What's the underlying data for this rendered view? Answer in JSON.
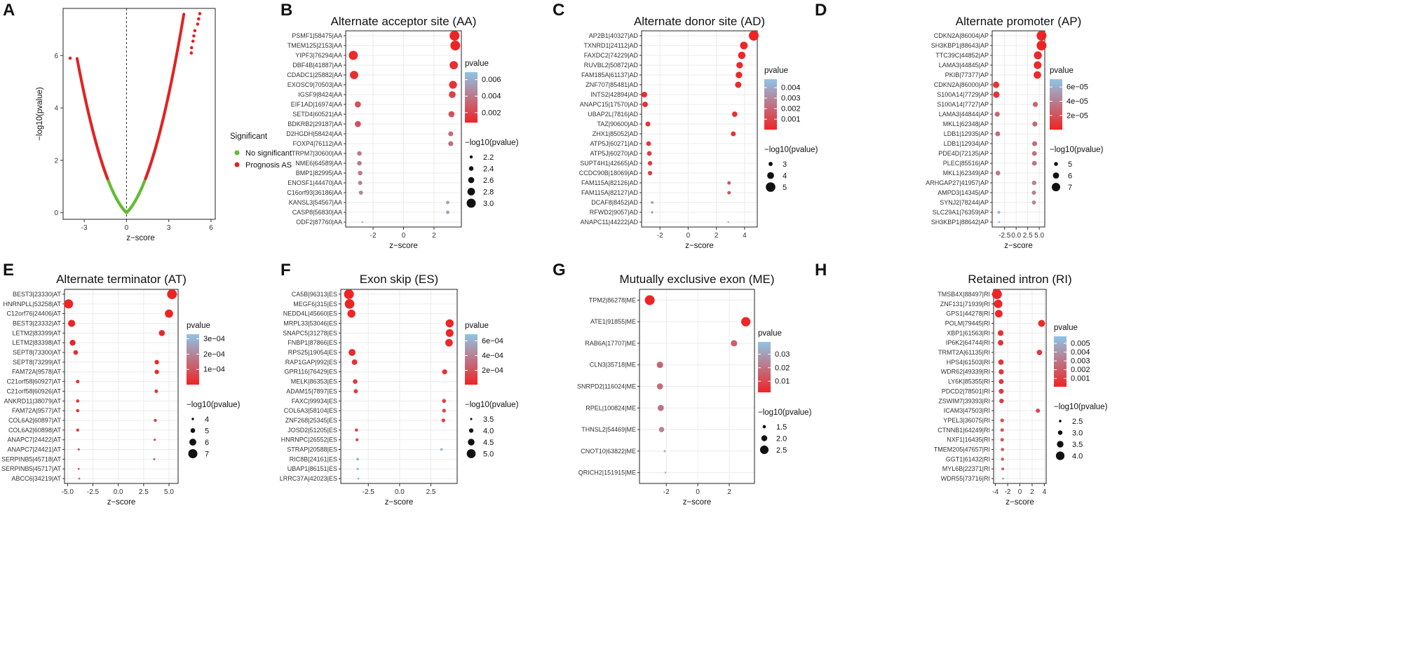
{
  "colors": {
    "high": "#ee2424",
    "low": "#8ec4e6",
    "green": "#66bb33",
    "red": "#e02424"
  },
  "chart_data": [
    {
      "panel": "A",
      "type": "scatter",
      "title": "",
      "xlabel": "z−score",
      "ylabel": "−log10(pvalue)",
      "xlim": [
        -4.5,
        6.3
      ],
      "ylim": [
        -0.25,
        7.8
      ],
      "xticks": [
        -3,
        0,
        3,
        6
      ],
      "xtick_labels": [
        "-3",
        "0",
        "3",
        "6"
      ],
      "yticks": [
        0,
        2,
        4,
        6
      ],
      "vline": 0,
      "legend_title": "Significant",
      "legend": [
        "No significant",
        "Prognosis AS"
      ]
    },
    {
      "panel": "B",
      "type": "scatter",
      "title": "Alternate acceptor site (AA)",
      "xlabel": "z−score",
      "xlim": [
        -3.8,
        3.8
      ],
      "xticks": [
        -2,
        0,
        2
      ],
      "xtick_labels": [
        "-2",
        "0",
        "2"
      ],
      "labels": [
        "PSMF1|58475|AA",
        "TMEM125|2153|AA",
        "YIPF3|76294|AA",
        "DBF4B|41887|AA",
        "CDADC1|25882|AA",
        "EXOSC9|70503|AA",
        "IGSF9|8424|AA",
        "EIF1AD|16974|AA",
        "SETD4|60521|AA",
        "BDKRB2|29187|AA",
        "D2HGDH|58424|AA",
        "FOXP4|76112|AA",
        "TRPM7|30600|AA",
        "NME6|64589|AA",
        "BMP1|82995|AA",
        "ENOSF1|44470|AA",
        "C16orf93|36186|AA",
        "KANSL3|54567|AA",
        "CASP8|56830|AA",
        "ODF2|87760|AA"
      ],
      "x": [
        3.35,
        3.4,
        -3.3,
        3.3,
        -3.25,
        3.25,
        3.2,
        -3.0,
        3.15,
        -3.0,
        3.1,
        3.1,
        -2.9,
        -2.9,
        -2.85,
        -2.85,
        -2.8,
        2.9,
        2.9,
        -2.7
      ],
      "neglog10p": [
        3.1,
        3.1,
        3.0,
        2.9,
        2.9,
        2.85,
        2.7,
        2.6,
        2.6,
        2.6,
        2.45,
        2.45,
        2.4,
        2.4,
        2.4,
        2.35,
        2.35,
        2.25,
        2.25,
        2.05
      ],
      "pvalue": [
        0.0008,
        0.0008,
        0.001,
        0.0012,
        0.0012,
        0.0014,
        0.002,
        0.0025,
        0.0025,
        0.0025,
        0.0035,
        0.0035,
        0.004,
        0.004,
        0.004,
        0.0045,
        0.0045,
        0.0056,
        0.0056,
        0.0069
      ],
      "color_legend": {
        "title": "pvalue",
        "min": 0.0008,
        "max": 0.0069,
        "ticks": [
          0.002,
          0.004,
          0.006
        ],
        "tick_labels": [
          "0.002",
          "0.004",
          "0.006"
        ]
      },
      "size_legend": {
        "title": "−log10(pvalue)",
        "values": [
          2.2,
          2.4,
          2.6,
          2.8,
          3.0
        ],
        "labels": [
          "2.2",
          "2.4",
          "2.6",
          "2.8",
          "3.0"
        ],
        "min": 2.05,
        "max": 3.1
      }
    },
    {
      "panel": "C",
      "type": "scatter",
      "title": "Alternate donor site (AD)",
      "xlabel": "z−score",
      "xlim": [
        -3.3,
        4.9
      ],
      "xticks": [
        -2,
        0,
        2,
        4
      ],
      "xtick_labels": [
        "-2",
        "0",
        "2",
        "4"
      ],
      "labels": [
        "AP2B1|40327|AD",
        "TXNRD1|24112|AD",
        "FAXDC2|74229|AD",
        "RUVBL2|50872|AD",
        "FAM185A|61137|AD",
        "ZNF707|85481|AD",
        "INTS2|42894|AD",
        "ANAPC15|17570|AD",
        "UBAP2L|7816|AD",
        "TAZ|90600|AD",
        "ZHX1|85052|AD",
        "ATP5J|60271|AD",
        "ATP5J|60270|AD",
        "SUPT4H1|42665|AD",
        "CCDC90B|18069|AD",
        "FAM115A|82126|AD",
        "FAM115A|82127|AD",
        "DCAF8|8452|AD",
        "RFWD2|9057|AD",
        "ANAPC11|44222|AD"
      ],
      "x": [
        4.65,
        3.95,
        3.8,
        3.65,
        3.6,
        3.55,
        -3.1,
        -3.05,
        3.3,
        -2.85,
        3.2,
        -2.8,
        -2.75,
        -2.7,
        -2.7,
        2.9,
        2.9,
        -2.55,
        -2.55,
        2.85
      ],
      "neglog10p": [
        5.1,
        4.3,
        4.2,
        3.9,
        3.9,
        3.8,
        3.55,
        3.5,
        3.45,
        3.3,
        3.3,
        3.25,
        3.2,
        3.15,
        3.1,
        2.8,
        2.8,
        2.45,
        2.4,
        2.2
      ],
      "pvalue": [
        1e-05,
        5e-05,
        6e-05,
        0.0001,
        0.0001,
        0.00016,
        0.0003,
        0.00032,
        0.00035,
        0.0005,
        0.0005,
        0.00056,
        0.00063,
        0.0007,
        0.0008,
        0.0016,
        0.0016,
        0.0035,
        0.004,
        0.0063
      ],
      "color_legend": {
        "title": "pvalue",
        "min": 1e-05,
        "max": 0.0048,
        "ticks": [
          0.001,
          0.002,
          0.003,
          0.004
        ],
        "tick_labels": [
          "0.001",
          "0.002",
          "0.003",
          "0.004"
        ]
      },
      "size_legend": {
        "title": "−log10(pvalue)",
        "values": [
          3,
          4,
          5
        ],
        "labels": [
          "3",
          "4",
          "5"
        ],
        "min": 2.2,
        "max": 5.1
      }
    },
    {
      "panel": "D",
      "type": "scatter",
      "title": "Alternate promoter (AP)",
      "xlabel": "z−score",
      "xlim": [
        -5.2,
        6.2
      ],
      "xticks": [
        -2.5,
        0,
        2.5,
        5
      ],
      "xtick_labels": [
        "-2.5",
        "0.0",
        "2.5",
        "5.0"
      ],
      "labels": [
        "CDKN2A|86004|AP",
        "SH3KBP1|88643|AP",
        "TTC39C|44852|AP",
        "LAMA3|44845|AP",
        "PKIB|77377|AP",
        "CDKN2A|86000|AP",
        "S100A14|7729|AP",
        "S100A14|7727|AP",
        "LAMA3|44844|AP",
        "MKL1|62348|AP",
        "LDB1|12935|AP",
        "LDB1|12934|AP",
        "PDE4D|72135|AP",
        "PLEC|85516|AP",
        "MKL1|62349|AP",
        "ARHGAP27|41957|AP",
        "AMPD3|14345|AP",
        "SYNJ2|78244|AP",
        "SLC29A1|76359|AP",
        "SH3KBP1|88642|AP"
      ],
      "x": [
        5.5,
        5.5,
        4.7,
        4.65,
        4.6,
        -4.35,
        -4.3,
        4.15,
        -4.1,
        4.05,
        -4.0,
        4.0,
        3.95,
        3.95,
        -3.95,
        3.9,
        3.85,
        3.85,
        -3.75,
        -3.7
      ],
      "neglog10p": [
        7.6,
        7.6,
        6.8,
        6.7,
        6.6,
        6.1,
        6.1,
        5.55,
        5.5,
        5.5,
        5.45,
        5.45,
        5.4,
        5.4,
        5.35,
        5.25,
        5.15,
        5.1,
        4.5,
        4.15
      ],
      "pvalue": [
        1e-07,
        1e-07,
        2e-06,
        3e-06,
        4e-06,
        8e-06,
        8e-06,
        2.8e-05,
        3e-05,
        3e-05,
        3.2e-05,
        3.2e-05,
        3.5e-05,
        3.5e-05,
        3.8e-05,
        4e-05,
        4e-05,
        4.5e-05,
        6.2e-05,
        7.1e-05
      ],
      "color_legend": {
        "title": "pvalue",
        "min": 1e-07,
        "max": 7.1e-05,
        "ticks": [
          2e-05,
          4e-05,
          6e-05
        ],
        "tick_labels": [
          "2e−05",
          "4e−05",
          "6e−05"
        ]
      },
      "size_legend": {
        "title": "−log10(pvalue)",
        "values": [
          5,
          6,
          7
        ],
        "labels": [
          "5",
          "6",
          "7"
        ],
        "min": 4.15,
        "max": 7.6
      }
    },
    {
      "panel": "E",
      "type": "scatter",
      "title": "Alternate terminator (AT)",
      "xlabel": "z−score",
      "xlim": [
        -5.3,
        5.9
      ],
      "xticks": [
        -5,
        -2.5,
        0,
        2.5,
        5
      ],
      "xtick_labels": [
        "-5.0",
        "-2.5",
        "0.0",
        "2.5",
        "5.0"
      ],
      "labels": [
        "BEST3|23330|AT",
        "HNRNPLL|53258|AT",
        "C12orf76|24406|AT",
        "BEST3|23332|AT",
        "LETM2|83399|AT",
        "LETM2|83398|AT",
        "SEPT8|73300|AT",
        "SEPT8|73299|AT",
        "FAM72A|9578|AT",
        "C21orf58|60927|AT",
        "C21orf58|60926|AT",
        "ANKRD11|38079|AT",
        "FAM72A|9577|AT",
        "COL6A2|60897|AT",
        "COL6A2|60898|AT",
        "ANAPC7|24422|AT",
        "ANAPC7|24421|AT",
        "SERPINB5|45718|AT",
        "SERPINB5|45717|AT",
        "ABCC6|34219|AT"
      ],
      "x": [
        5.3,
        -4.9,
        5.0,
        -4.6,
        4.3,
        -4.5,
        -4.2,
        3.8,
        3.8,
        -4.0,
        3.75,
        -4.0,
        -4.0,
        3.65,
        -4.0,
        3.6,
        -3.9,
        3.55,
        -3.9,
        -3.85
      ],
      "neglog10p": [
        7.3,
        7.0,
        6.6,
        6.1,
        5.6,
        5.55,
        5.0,
        4.95,
        4.9,
        4.5,
        4.5,
        4.4,
        4.4,
        4.3,
        4.3,
        4.0,
        3.95,
        3.9,
        3.85,
        3.8
      ],
      "pvalue": [
        1e-07,
        1e-07,
        5e-07,
        1e-06,
        3e-06,
        3e-06,
        1e-05,
        1.2e-05,
        1.3e-05,
        3e-05,
        3e-05,
        4e-05,
        4e-05,
        5e-05,
        5e-05,
        0.0001,
        0.00011,
        0.00012,
        0.00014,
        0.00016
      ],
      "color_legend": {
        "title": "pvalue",
        "min": 1e-07,
        "max": 0.00033,
        "ticks": [
          0.0001,
          0.0002,
          0.0003
        ],
        "tick_labels": [
          "1e−04",
          "2e−04",
          "3e−04"
        ]
      },
      "size_legend": {
        "title": "−log10(pvalue)",
        "values": [
          4,
          5,
          6,
          7
        ],
        "labels": [
          "4",
          "5",
          "6",
          "7"
        ],
        "min": 3.8,
        "max": 7.3
      }
    },
    {
      "panel": "F",
      "type": "scatter",
      "title": "Exon skip (ES)",
      "xlabel": "z−score",
      "xlim": [
        -4.7,
        4.6
      ],
      "xticks": [
        -2.5,
        0,
        2.5
      ],
      "xtick_labels": [
        "-2.5",
        "0.0",
        "2.5"
      ],
      "labels": [
        "CA5B|96313|ES",
        "MEGF6|315|ES",
        "NEDD4L|45660|ES",
        "MRPL33|53046|ES",
        "SNAPC5|31278|ES",
        "FNBP1|87866|ES",
        "RPS25|19054|ES",
        "RAP1GAP|992|ES",
        "GPR116|76429|ES",
        "MELK|86353|ES",
        "ADAM15|7897|ES",
        "FAXC|99934|ES",
        "COL6A3|58104|ES",
        "ZNF268|25345|ES",
        "JOSD2|51205|ES",
        "HNRNPC|26552|ES",
        "STRAP|20588|ES",
        "RIC8B|24161|ES",
        "UBAP1|86151|ES",
        "LRRC37A|42023|ES"
      ],
      "x": [
        -4.05,
        -4.0,
        -3.85,
        4.0,
        4.0,
        3.95,
        -3.8,
        -3.6,
        3.6,
        -3.55,
        -3.5,
        3.55,
        3.55,
        3.5,
        -3.45,
        -3.4,
        3.35,
        -3.35,
        -3.35,
        -3.3
      ],
      "neglog10p": [
        5.2,
        5.15,
        4.8,
        4.8,
        4.75,
        4.7,
        4.55,
        4.25,
        4.15,
        4.05,
        3.95,
        3.9,
        3.85,
        3.85,
        3.75,
        3.7,
        3.6,
        3.6,
        3.55,
        3.45
      ],
      "pvalue": [
        6e-06,
        7e-06,
        1.6e-05,
        1.6e-05,
        1.8e-05,
        2e-05,
        2.8e-05,
        6e-05,
        7e-05,
        9e-05,
        0.00011,
        0.00013,
        0.00014,
        0.00014,
        0.00018,
        0.0002,
        0.00063,
        0.00063,
        0.00066,
        0.00066
      ],
      "color_legend": {
        "title": "pvalue",
        "min": 6e-06,
        "max": 0.00069,
        "ticks": [
          0.0002,
          0.0004,
          0.0006
        ],
        "tick_labels": [
          "2e−04",
          "4e−04",
          "6e−04"
        ]
      },
      "size_legend": {
        "title": "−log10(pvalue)",
        "values": [
          3.5,
          4.0,
          4.5,
          5.0
        ],
        "labels": [
          "3.5",
          "4.0",
          "4.5",
          "5.0"
        ],
        "min": 3.45,
        "max": 5.2
      }
    },
    {
      "panel": "G",
      "type": "scatter",
      "title": "Mutually exclusive exon (ME)",
      "xlabel": "z−score",
      "xlim": [
        -3.7,
        3.6
      ],
      "xticks": [
        -2,
        0,
        2
      ],
      "xtick_labels": [
        "-2",
        "0",
        "2"
      ],
      "labels": [
        "TPM2|86278|ME",
        "ATE1|91855|ME",
        "RAB6A|17707|ME",
        "CLN3|35718|ME",
        "SNRPD2|116024|ME",
        "RPEL|100824|ME",
        "THNSL2|54469|ME",
        "CNOT10|63822|ME",
        "QRICH2|151915|ME"
      ],
      "x": [
        -3.05,
        3.05,
        2.3,
        -2.4,
        -2.4,
        -2.35,
        -2.3,
        -2.1,
        -2.05
      ],
      "neglog10p": [
        2.75,
        2.65,
        2.1,
        2.1,
        2.05,
        2.05,
        1.9,
        1.3,
        1.25
      ],
      "pvalue": [
        0.0018,
        0.0022,
        0.016,
        0.017,
        0.019,
        0.02,
        0.024,
        0.037,
        0.038
      ],
      "color_legend": {
        "title": "pvalue",
        "min": 0.0018,
        "max": 0.039,
        "ticks": [
          0.01,
          0.02,
          0.03
        ],
        "tick_labels": [
          "0.01",
          "0.02",
          "0.03"
        ]
      },
      "size_legend": {
        "title": "−log10(pvalue)",
        "values": [
          1.5,
          2.0,
          2.5
        ],
        "labels": [
          "1.5",
          "2.0",
          "2.5"
        ],
        "min": 1.25,
        "max": 2.75
      }
    },
    {
      "panel": "H",
      "type": "scatter",
      "title": "Retained intron (RI)",
      "xlabel": "z−score",
      "xlim": [
        -4.3,
        4.3
      ],
      "xticks": [
        -4,
        -2,
        0,
        2,
        4
      ],
      "xtick_labels": [
        "-4",
        "-2",
        "0",
        "2",
        "4"
      ],
      "labels": [
        "TMSB4X|88497|RI",
        "ZNF131|71939|RI",
        "GPS1|44278|RI",
        "POLM|79445|RI",
        "XBP1|61563|RI",
        "IP6K2|64744|RI",
        "TRMT2A|61135|RI",
        "HPS4|61503|RI",
        "WDR62|49339|RI",
        "LY6K|85355|RI",
        "PDCD2|78501|RI",
        "ZSWIM7|39393|RI",
        "ICAM3|47503|RI",
        "YPEL3|36075|RI",
        "CTNNB1|64249|RI",
        "NXF1|16435|RI",
        "TMEM205|47657|RI",
        "GGT1|61432|RI",
        "MYL6B|22371|RI",
        "WDR55|73716|RI"
      ],
      "x": [
        -3.75,
        -3.55,
        -3.45,
        3.55,
        -3.15,
        -3.15,
        3.2,
        -3.1,
        -3.05,
        -3.05,
        -3.05,
        -3.0,
        2.95,
        -2.9,
        -2.9,
        -2.9,
        -2.85,
        -2.85,
        -2.8,
        -2.75
      ],
      "neglog10p": [
        4.3,
        3.95,
        3.75,
        3.6,
        3.3,
        3.25,
        3.2,
        3.2,
        3.15,
        3.1,
        3.1,
        3.0,
        2.9,
        2.8,
        2.75,
        2.75,
        2.7,
        2.65,
        2.6,
        2.35
      ],
      "pvalue": [
        5e-05,
        0.00011,
        0.00018,
        0.00025,
        0.0005,
        0.00056,
        0.00063,
        0.00063,
        0.0007,
        0.0008,
        0.0008,
        0.001,
        0.0013,
        0.0016,
        0.0018,
        0.0018,
        0.002,
        0.0022,
        0.0025,
        0.0045
      ],
      "color_legend": {
        "title": "pvalue",
        "min": 5e-05,
        "max": 0.0058,
        "ticks": [
          0.001,
          0.002,
          0.003,
          0.004,
          0.005
        ],
        "tick_labels": [
          "0.001",
          "0.002",
          "0.003",
          "0.004",
          "0.005"
        ]
      },
      "size_legend": {
        "title": "−log10(pvalue)",
        "values": [
          2.5,
          3.0,
          3.5,
          4.0
        ],
        "labels": [
          "2.5",
          "3.0",
          "3.5",
          "4.0"
        ],
        "min": 2.35,
        "max": 4.3
      }
    }
  ]
}
